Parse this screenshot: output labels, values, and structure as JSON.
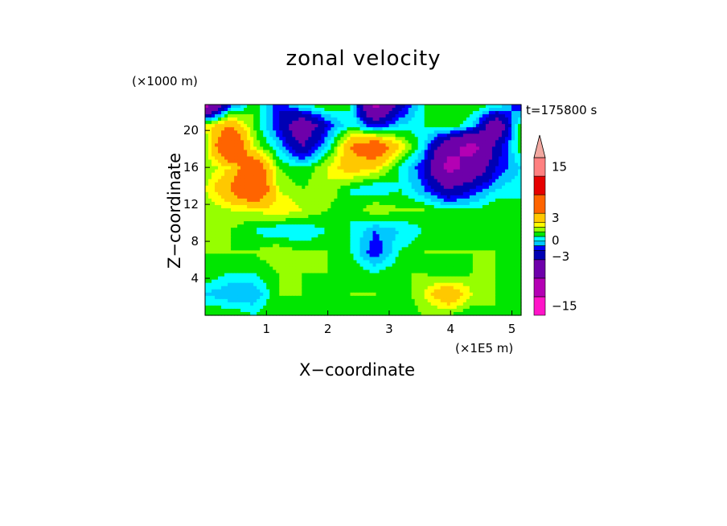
{
  "chart_data": {
    "type": "heatmap",
    "title": "zonal velocity",
    "xlabel": "X−coordinate",
    "ylabel": "Z−coordinate",
    "x_unit": "(×1E5 m)",
    "y_unit": "(×1000 m)",
    "time_label": "t=175800 s",
    "xlim": [
      0,
      5.15
    ],
    "ylim": [
      0,
      22.8
    ],
    "x_ticks": [
      1,
      2,
      3,
      4,
      5
    ],
    "y_ticks": [
      4,
      8,
      12,
      16,
      20
    ],
    "colorbar": {
      "tick_labels": [
        {
          "value": 15,
          "label": "15"
        },
        {
          "value": 3,
          "label": "3"
        },
        {
          "value": 0,
          "label": "0"
        },
        {
          "value": -3,
          "label": "−3"
        },
        {
          "value": -15,
          "label": "−15"
        }
      ],
      "levels": [
        -20,
        -15,
        -10,
        -5,
        -3,
        -2,
        -1,
        0,
        1,
        2,
        3,
        5,
        10,
        15,
        20
      ],
      "colors": [
        "#ff14c8",
        "#b400b4",
        "#6e00aa",
        "#0000b4",
        "#0000ff",
        "#00c8ff",
        "#00ffff",
        "#00e600",
        "#96ff00",
        "#ffff00",
        "#ffc800",
        "#ff6400",
        "#e60000",
        "#ff8080",
        "#ffb4b4"
      ],
      "extend_max_color": "#f2a8a0"
    },
    "field": {
      "rows": 11,
      "cols": 14,
      "row_order": "top_to_bottom",
      "values": [
        [
          -12,
          -3,
          1,
          -3,
          0,
          1,
          0,
          -12,
          -4,
          0,
          1,
          1,
          0,
          -3
        ],
        [
          2,
          5,
          1,
          -3,
          -8,
          -3,
          0,
          -3,
          -1,
          0,
          1,
          -1,
          -8,
          1
        ],
        [
          1,
          10,
          2,
          -1,
          -5,
          -1,
          5,
          8,
          3,
          -1,
          -8,
          -12,
          -4,
          1
        ],
        [
          1,
          3,
          8,
          1,
          0,
          2,
          4,
          3,
          0,
          -3,
          -12,
          -8,
          -3,
          -1
        ],
        [
          2,
          5,
          10,
          2,
          1,
          2,
          0,
          -1,
          0,
          -2,
          -5,
          -3,
          -1,
          0
        ],
        [
          1,
          2,
          2,
          3,
          2,
          1,
          0,
          2,
          1,
          1,
          0,
          0,
          1,
          0
        ],
        [
          1,
          1,
          0,
          -1,
          -1,
          0,
          0,
          -2,
          -1,
          0,
          0,
          1,
          0,
          0
        ],
        [
          1,
          1,
          1,
          2,
          1,
          1,
          0,
          -3,
          0,
          1,
          1,
          1,
          1,
          0
        ],
        [
          1,
          0,
          0,
          1,
          1,
          1,
          1,
          0,
          1,
          1,
          0,
          1,
          1,
          0
        ],
        [
          -1,
          -2,
          -2,
          1,
          1,
          0,
          1,
          1,
          0,
          2,
          5,
          2,
          1,
          0
        ],
        [
          1,
          1,
          0,
          1,
          0,
          1,
          0,
          1,
          0,
          1,
          1,
          0,
          1,
          0
        ]
      ]
    },
    "grid": false
  }
}
